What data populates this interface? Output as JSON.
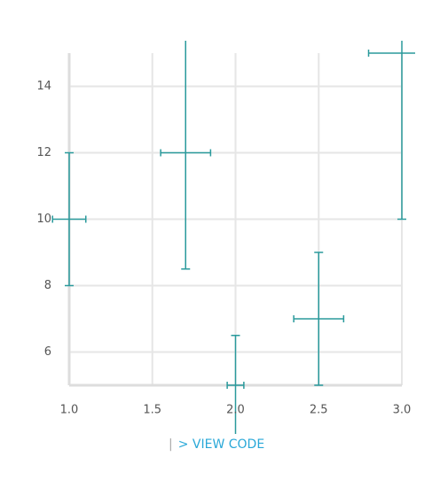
{
  "chart_data": {
    "type": "errorbar",
    "color": "#2a9a9c",
    "x": [
      1.0,
      1.7,
      2.0,
      2.5,
      3.0
    ],
    "y": [
      10,
      12,
      5,
      7,
      15
    ],
    "xerr": [
      0.1,
      0.15,
      0.05,
      0.15,
      0.2
    ],
    "yerr": [
      2,
      3.5,
      1.5,
      2,
      5
    ],
    "xlim": [
      1,
      3
    ],
    "ylim": [
      5,
      15
    ],
    "xticks": [
      {
        "value": 1,
        "label": "1.0"
      },
      1.5,
      {
        "value": 2,
        "label": "2.0"
      },
      2.5,
      {
        "value": 3,
        "label": "3.0"
      }
    ],
    "yticks": [
      6,
      8,
      10,
      12,
      14
    ],
    "grid": true
  },
  "link": "> VIEW CODE"
}
